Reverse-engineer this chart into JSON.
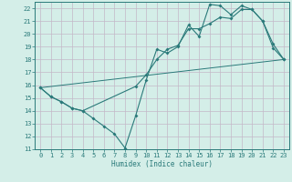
{
  "title": "",
  "xlabel": "Humidex (Indice chaleur)",
  "xlim": [
    -0.5,
    23.5
  ],
  "ylim": [
    11,
    22.5
  ],
  "yticks": [
    11,
    12,
    13,
    14,
    15,
    16,
    17,
    18,
    19,
    20,
    21,
    22
  ],
  "xticks": [
    0,
    1,
    2,
    3,
    4,
    5,
    6,
    7,
    8,
    9,
    10,
    11,
    12,
    13,
    14,
    15,
    16,
    17,
    18,
    19,
    20,
    21,
    22,
    23
  ],
  "bg_color": "#d4eee8",
  "grid_color": "#c4b8c8",
  "line_color": "#2a7a7a",
  "line1_x": [
    0,
    1,
    2,
    3,
    4,
    5,
    6,
    7,
    8,
    9,
    10,
    11,
    12,
    13,
    14,
    15,
    16,
    17,
    18,
    19,
    20,
    21,
    22,
    23
  ],
  "line1_y": [
    15.8,
    15.1,
    14.7,
    14.2,
    14.0,
    13.4,
    12.8,
    12.2,
    11.1,
    13.6,
    16.4,
    18.8,
    18.5,
    19.0,
    20.7,
    19.8,
    22.3,
    22.2,
    21.5,
    22.2,
    21.9,
    21.0,
    18.9,
    18.0
  ],
  "line2_x": [
    0,
    1,
    2,
    3,
    4,
    9,
    10,
    11,
    12,
    13,
    14,
    15,
    16,
    17,
    18,
    19,
    20,
    21,
    22,
    23
  ],
  "line2_y": [
    15.8,
    15.1,
    14.7,
    14.2,
    14.0,
    15.9,
    16.8,
    18.0,
    18.8,
    19.1,
    20.4,
    20.4,
    20.8,
    21.3,
    21.2,
    21.9,
    21.9,
    21.0,
    19.2,
    18.0
  ],
  "line3_x": [
    0,
    23
  ],
  "line3_y": [
    15.8,
    18.0
  ]
}
